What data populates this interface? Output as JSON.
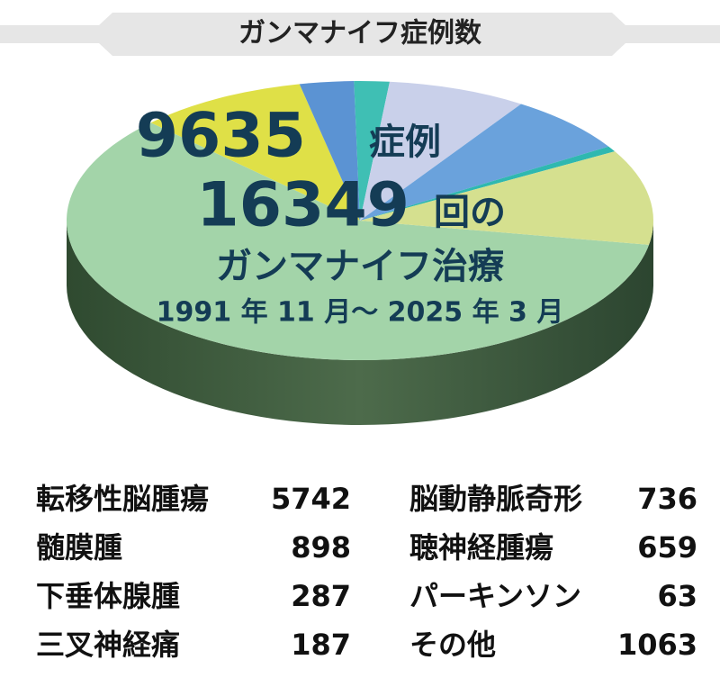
{
  "chart_data": {
    "type": "pie",
    "title": "ガンマナイフ症例数",
    "overlay": {
      "cases": "9635",
      "cases_unit": "症例",
      "treatments": "16349",
      "treatments_unit": "回の",
      "treatment_name": "ガンマナイフ治療",
      "period": "1991 年 11 月～ 2025 年 3 月"
    },
    "categories": [
      "転移性脳腫瘍",
      "髄膜腫",
      "下垂体腺腫",
      "三叉神経痛",
      "脳動静脈奇形",
      "聴神経腫瘍",
      "パーキンソン",
      "その他"
    ],
    "values": [
      5742,
      898,
      287,
      187,
      736,
      659,
      63,
      1063
    ],
    "colors": [
      "#a3d4a9",
      "#dfe047",
      "#5b93d3",
      "#3fbfb4",
      "#c9d0ea",
      "#6aa2dc",
      "#2fb8b0",
      "#d5e08f"
    ]
  }
}
